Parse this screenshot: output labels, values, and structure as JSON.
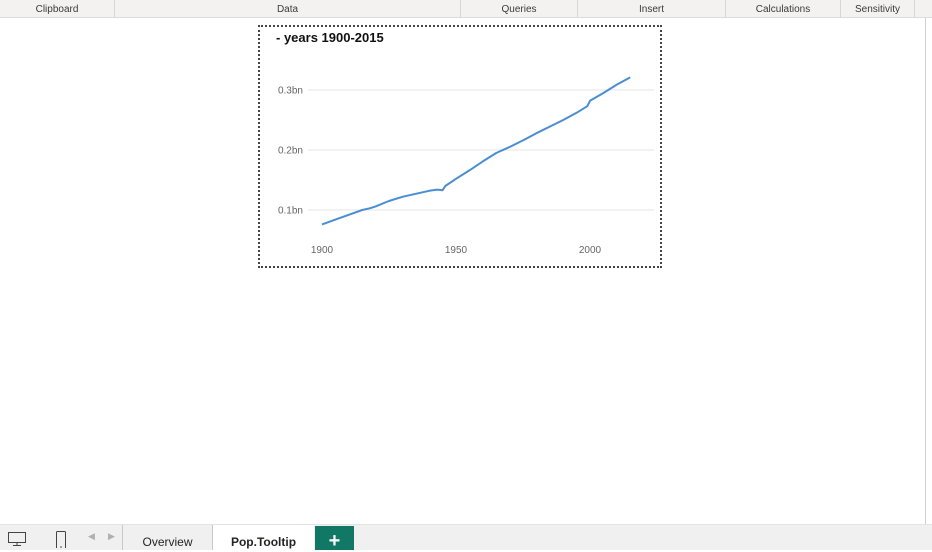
{
  "ribbon": {
    "groups": [
      "Clipboard",
      "Data",
      "Queries",
      "Insert",
      "Calculations",
      "Sensitivity"
    ]
  },
  "visual": {
    "title": "- years 1900-2015"
  },
  "chart_data": {
    "type": "line",
    "title": "- years 1900-2015",
    "xlabel": "",
    "ylabel": "",
    "x_ticks": [
      "1900",
      "1950",
      "2000"
    ],
    "y_ticks": [
      "0.1bn",
      "0.2bn",
      "0.3bn"
    ],
    "xlim": [
      1900,
      2015
    ],
    "ylim": [
      0.05,
      0.35
    ],
    "grid": true,
    "color": "#4a8ed1",
    "series": [
      {
        "x": [
          1900,
          1905,
          1910,
          1915,
          1918,
          1920,
          1925,
          1930,
          1935,
          1940,
          1943,
          1945,
          1946,
          1950,
          1955,
          1960,
          1965,
          1970,
          1975,
          1980,
          1985,
          1990,
          1995,
          1999,
          2000,
          2005,
          2010,
          2015
        ],
        "y": [
          0.076,
          0.084,
          0.092,
          0.1,
          0.103,
          0.106,
          0.115,
          0.122,
          0.127,
          0.132,
          0.134,
          0.133,
          0.14,
          0.152,
          0.166,
          0.181,
          0.195,
          0.205,
          0.216,
          0.228,
          0.239,
          0.25,
          0.262,
          0.273,
          0.282,
          0.295,
          0.309,
          0.321
        ]
      }
    ]
  },
  "tabs": {
    "items": [
      "Overview",
      "Pop.Tooltip"
    ],
    "active": "Pop.Tooltip",
    "add_label": "+"
  },
  "icons": {
    "desktop": "desktop-view-icon",
    "phone": "mobile-view-icon",
    "prev": "chevron-left-icon",
    "next": "chevron-right-icon"
  }
}
